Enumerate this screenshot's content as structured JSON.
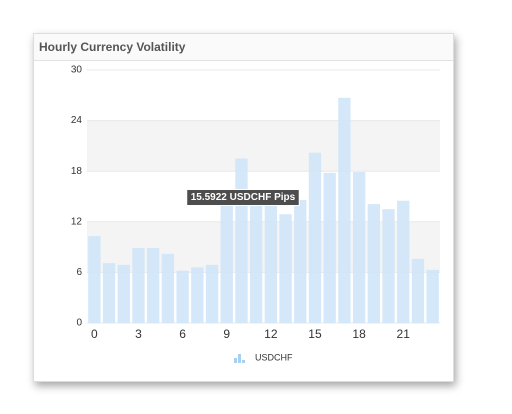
{
  "chart_data": {
    "type": "bar",
    "title": "Hourly Currency Volatility",
    "x": [
      0,
      1,
      2,
      3,
      4,
      5,
      6,
      7,
      8,
      9,
      10,
      11,
      12,
      13,
      14,
      15,
      16,
      17,
      18,
      19,
      20,
      21,
      22,
      23
    ],
    "series": [
      {
        "name": "USDCHF",
        "color": "#cfe6f8",
        "values": [
          10.3,
          7.1,
          6.9,
          8.9,
          8.9,
          8.2,
          6.2,
          6.6,
          6.9,
          15.5922,
          19.5,
          15.0,
          14.6,
          12.9,
          14.6,
          20.2,
          17.8,
          26.7,
          17.9,
          14.1,
          13.5,
          14.5,
          7.6,
          6.3
        ]
      }
    ],
    "xlim": [
      -0.5,
      23.5
    ],
    "xticks": [
      0,
      3,
      6,
      9,
      12,
      15,
      18,
      21
    ],
    "ylim": [
      0,
      30
    ],
    "yticks": [
      0,
      6,
      12,
      18,
      24,
      30
    ],
    "grid": true,
    "legend": "bottom",
    "tooltip": "15.5922 USDCHF Pips"
  }
}
